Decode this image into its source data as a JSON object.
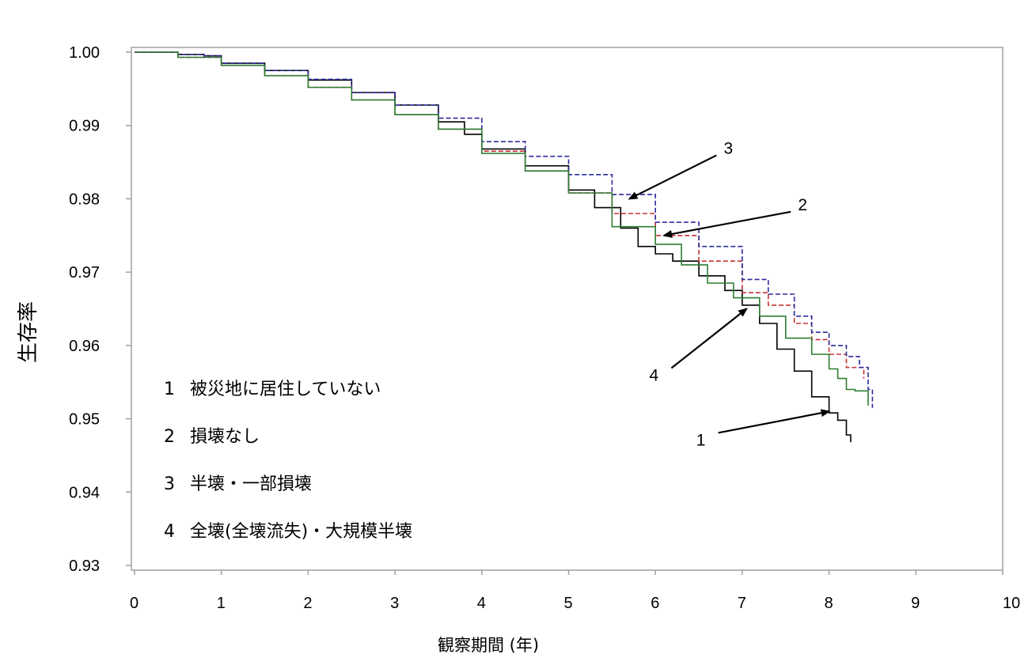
{
  "chart_data": {
    "type": "line",
    "title": "",
    "xlabel": "観察期間 (年)",
    "ylabel": "生存率",
    "xlim": [
      0,
      10
    ],
    "ylim": [
      0.93,
      1.0
    ],
    "x_ticks": [
      "0",
      "1",
      "2",
      "3",
      "4",
      "5",
      "6",
      "7",
      "8",
      "9",
      "10"
    ],
    "y_ticks": [
      "0.93",
      "0.94",
      "0.95",
      "0.96",
      "0.97",
      "0.98",
      "0.99",
      "1.00"
    ],
    "grid": false,
    "legend_placement": "bottom-left",
    "legend": [
      {
        "number": "1",
        "label": "被災地に居住していない"
      },
      {
        "number": "2",
        "label": "損壊なし"
      },
      {
        "number": "3",
        "label": "半壊・一部損壊"
      },
      {
        "number": "4",
        "label": "全壊(全壊流失)・大規模半壊"
      }
    ],
    "series": [
      {
        "id": "1",
        "color": "#000000",
        "style": "solid",
        "x": [
          0,
          0.5,
          0.8,
          1.0,
          1.5,
          2.0,
          2.5,
          3.0,
          3.5,
          3.8,
          4.0,
          4.5,
          5.0,
          5.3,
          5.6,
          5.8,
          6.0,
          6.2,
          6.5,
          6.8,
          7.0,
          7.2,
          7.4,
          7.6,
          7.8,
          8.0,
          8.1,
          8.2,
          8.25
        ],
        "y": [
          1.0,
          0.9997,
          0.9995,
          0.9985,
          0.9975,
          0.9962,
          0.9945,
          0.9928,
          0.9905,
          0.9888,
          0.9868,
          0.9845,
          0.9812,
          0.9788,
          0.976,
          0.9735,
          0.9725,
          0.9715,
          0.9695,
          0.9675,
          0.9655,
          0.963,
          0.9595,
          0.9565,
          0.953,
          0.9508,
          0.9498,
          0.9478,
          0.9468
        ]
      },
      {
        "id": "2",
        "color": "#c83232",
        "style": "dashed",
        "x": [
          0,
          0.5,
          1.0,
          1.5,
          2.0,
          2.5,
          3.0,
          3.5,
          4.0,
          4.5,
          5.0,
          5.5,
          6.0,
          6.5,
          7.0,
          7.3,
          7.6,
          7.8,
          8.0,
          8.2,
          8.4
        ],
        "y": [
          1.0,
          0.9993,
          0.9982,
          0.9968,
          0.9952,
          0.9935,
          0.9915,
          0.9895,
          0.9865,
          0.9838,
          0.9808,
          0.978,
          0.975,
          0.9715,
          0.9672,
          0.9655,
          0.963,
          0.9608,
          0.9588,
          0.957,
          0.9555
        ]
      },
      {
        "id": "3",
        "color": "#2a2a9c",
        "style": "dashed",
        "x": [
          0,
          0.5,
          0.8,
          1.0,
          1.5,
          2.0,
          2.5,
          3.0,
          3.5,
          4.0,
          4.5,
          5.0,
          5.5,
          6.0,
          6.5,
          7.0,
          7.3,
          7.6,
          7.8,
          8.0,
          8.2,
          8.35,
          8.45,
          8.5
        ],
        "y": [
          1.0,
          0.9997,
          0.9995,
          0.9985,
          0.9975,
          0.9963,
          0.9945,
          0.9928,
          0.991,
          0.9878,
          0.9858,
          0.9833,
          0.9806,
          0.9768,
          0.9735,
          0.969,
          0.967,
          0.964,
          0.9618,
          0.96,
          0.9585,
          0.957,
          0.954,
          0.9515
        ]
      },
      {
        "id": "4",
        "color": "#2e7d32",
        "style": "solid",
        "x": [
          0,
          0.5,
          1.0,
          1.5,
          2.0,
          2.5,
          3.0,
          3.5,
          4.0,
          4.5,
          5.0,
          5.5,
          6.0,
          6.3,
          6.6,
          6.9,
          7.2,
          7.5,
          7.8,
          8.0,
          8.1,
          8.2,
          8.3,
          8.4,
          8.45
        ],
        "y": [
          1.0,
          0.9993,
          0.9982,
          0.9968,
          0.9952,
          0.9935,
          0.9915,
          0.9895,
          0.9862,
          0.9838,
          0.9808,
          0.9762,
          0.9738,
          0.971,
          0.9685,
          0.9665,
          0.964,
          0.961,
          0.9588,
          0.9568,
          0.9555,
          0.954,
          0.9538,
          0.9538,
          0.9518
        ]
      }
    ],
    "annotations": [
      {
        "label": "1",
        "series": "1",
        "x": 8.0,
        "y": 0.951
      },
      {
        "label": "2",
        "series": "2",
        "x": 6.1,
        "y": 0.975
      },
      {
        "label": "3",
        "series": "3",
        "x": 5.7,
        "y": 0.98
      },
      {
        "label": "4",
        "series": "4",
        "x": 7.05,
        "y": 0.965
      }
    ]
  }
}
